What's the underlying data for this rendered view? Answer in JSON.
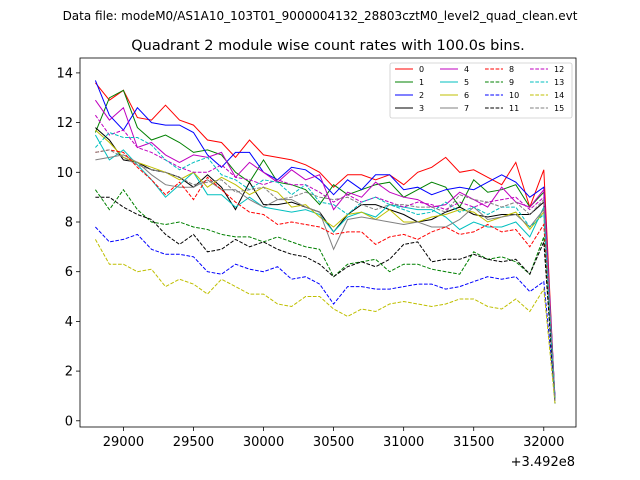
{
  "chart_data": {
    "type": "line",
    "suptitle": "Data file: modeM0/AS1A10_103T01_9000004132_28803cztM0_level2_quad_clean.evt",
    "title": "Quadrant 2 module wise count rates with 100.0s bins.",
    "xlabel": "",
    "ylabel": "",
    "x_offset_label": "+3.492e8",
    "xlim": [
      28690,
      32230
    ],
    "ylim": [
      -0.25,
      14.6
    ],
    "xticks": [
      29000,
      29500,
      30000,
      30500,
      31000,
      31500,
      32000
    ],
    "yticks": [
      0,
      2,
      4,
      6,
      8,
      10,
      12,
      14
    ],
    "xtick_labels": [
      "29000",
      "29500",
      "30000",
      "30500",
      "31000",
      "31500",
      "32000"
    ],
    "ytick_labels": [
      "0",
      "2",
      "4",
      "6",
      "8",
      "10",
      "12",
      "14"
    ],
    "legend_location": "upper-right",
    "x": [
      28800,
      28900,
      29000,
      29100,
      29200,
      29300,
      29400,
      29500,
      29600,
      29700,
      29800,
      29900,
      30000,
      30100,
      30200,
      30300,
      30400,
      30500,
      30600,
      30700,
      30800,
      30900,
      31000,
      31100,
      31200,
      31300,
      31400,
      31500,
      31600,
      31700,
      31800,
      31900,
      32000,
      32080
    ],
    "series": [
      {
        "name": "0",
        "color": "#ff0000",
        "dash": "solid",
        "values": [
          13.6,
          12.9,
          13.3,
          12.2,
          12.1,
          12.7,
          12.1,
          11.9,
          11.3,
          11.2,
          10.6,
          11.3,
          10.7,
          10.6,
          10.5,
          10.3,
          10.0,
          9.4,
          9.9,
          9.9,
          9.7,
          9.9,
          9.5,
          10.0,
          10.2,
          10.6,
          10.0,
          10.1,
          9.8,
          9.5,
          10.4,
          8.6,
          10.1,
          0.8
        ]
      },
      {
        "name": "1",
        "color": "#008000",
        "dash": "solid",
        "values": [
          11.6,
          13.0,
          13.3,
          11.8,
          11.3,
          11.5,
          11.2,
          10.8,
          10.9,
          10.7,
          10.0,
          9.6,
          10.5,
          9.6,
          9.5,
          9.3,
          8.7,
          9.5,
          9.1,
          9.3,
          9.5,
          9.6,
          9.0,
          9.3,
          9.6,
          9.4,
          8.6,
          9.7,
          9.2,
          9.3,
          9.5,
          8.6,
          9.2,
          0.8
        ]
      },
      {
        "name": "2",
        "color": "#0000ff",
        "dash": "solid",
        "values": [
          13.7,
          12.3,
          11.7,
          12.6,
          12.0,
          11.9,
          11.9,
          11.6,
          10.7,
          10.2,
          10.8,
          10.8,
          10.0,
          9.7,
          10.2,
          10.1,
          9.7,
          9.1,
          9.7,
          9.3,
          9.9,
          9.9,
          9.3,
          9.4,
          9.1,
          9.3,
          9.4,
          9.3,
          9.6,
          9.9,
          9.6,
          9.0,
          9.4,
          0.9
        ]
      },
      {
        "name": "3",
        "color": "#000000",
        "dash": "solid",
        "values": [
          11.8,
          11.3,
          10.5,
          10.4,
          10.1,
          10.0,
          9.8,
          9.4,
          9.9,
          9.4,
          8.5,
          9.6,
          8.7,
          8.7,
          8.8,
          8.6,
          8.4,
          7.6,
          8.3,
          8.7,
          8.7,
          8.5,
          8.3,
          8.0,
          8.1,
          8.4,
          8.6,
          8.3,
          8.2,
          8.3,
          8.3,
          8.3,
          8.8,
          0.8
        ]
      },
      {
        "name": "4",
        "color": "#bf00bf",
        "dash": "solid",
        "values": [
          12.9,
          12.1,
          12.6,
          11.0,
          11.2,
          10.7,
          10.4,
          10.7,
          10.6,
          10.8,
          9.8,
          10.4,
          10.0,
          9.6,
          10.1,
          9.7,
          9.9,
          8.5,
          9.2,
          9.0,
          9.6,
          9.2,
          9.0,
          8.9,
          8.6,
          8.7,
          9.2,
          8.9,
          8.6,
          9.4,
          8.8,
          8.6,
          9.3,
          0.9
        ]
      },
      {
        "name": "5",
        "color": "#00bfbf",
        "dash": "solid",
        "values": [
          11.5,
          10.5,
          10.9,
          10.3,
          9.7,
          9.0,
          9.5,
          10.0,
          9.1,
          9.1,
          8.6,
          9.0,
          8.6,
          8.5,
          8.4,
          8.5,
          8.3,
          7.6,
          8.2,
          8.4,
          8.2,
          8.7,
          8.6,
          8.5,
          8.5,
          8.2,
          7.7,
          8.0,
          7.8,
          7.8,
          8.0,
          7.4,
          8.6,
          0.9
        ]
      },
      {
        "name": "6",
        "color": "#bfbf00",
        "dash": "solid",
        "values": [
          11.7,
          11.2,
          10.6,
          10.4,
          10.2,
          10.0,
          9.7,
          10.0,
          9.4,
          9.8,
          9.5,
          9.1,
          9.4,
          9.2,
          8.6,
          8.7,
          8.2,
          7.8,
          8.3,
          8.4,
          8.1,
          8.5,
          8.0,
          8.0,
          8.2,
          8.3,
          8.5,
          8.4,
          8.0,
          8.2,
          8.4,
          7.7,
          8.4,
          0.9
        ]
      },
      {
        "name": "7",
        "color": "#808080",
        "dash": "solid",
        "values": [
          10.5,
          10.6,
          10.7,
          10.4,
          9.9,
          9.5,
          9.4,
          9.4,
          9.7,
          9.3,
          9.3,
          8.9,
          8.6,
          8.9,
          8.9,
          8.6,
          8.4,
          6.9,
          8.1,
          8.2,
          8.1,
          8.0,
          7.9,
          8.0,
          7.8,
          7.8,
          8.1,
          8.6,
          8.1,
          8.2,
          8.3,
          7.8,
          8.5,
          0.8
        ]
      },
      {
        "name": "8",
        "color": "#ff0000",
        "dash": "dashed",
        "values": [
          10.8,
          10.9,
          10.8,
          10.2,
          9.7,
          9.1,
          9.6,
          8.9,
          9.8,
          9.3,
          8.8,
          8.4,
          8.3,
          7.9,
          8.0,
          7.9,
          7.8,
          7.5,
          7.6,
          7.6,
          7.1,
          7.4,
          7.5,
          7.3,
          7.6,
          7.8,
          7.5,
          7.6,
          7.9,
          7.6,
          7.7,
          7.0,
          7.9,
          0.7
        ]
      },
      {
        "name": "9",
        "color": "#008000",
        "dash": "dashed",
        "values": [
          9.3,
          8.5,
          9.3,
          8.5,
          8.0,
          7.9,
          8.0,
          7.8,
          7.7,
          7.5,
          7.4,
          7.4,
          7.2,
          7.4,
          7.2,
          7.0,
          6.9,
          5.8,
          6.3,
          6.4,
          6.5,
          6.0,
          6.3,
          6.3,
          6.1,
          6.0,
          5.9,
          6.8,
          6.5,
          6.6,
          6.4,
          5.9,
          7.4,
          0.7
        ]
      },
      {
        "name": "10",
        "color": "#0000ff",
        "dash": "dashed",
        "values": [
          7.8,
          7.2,
          7.3,
          7.5,
          6.9,
          6.7,
          6.7,
          6.6,
          6.0,
          5.9,
          6.3,
          6.1,
          6.0,
          6.2,
          5.7,
          5.8,
          5.5,
          4.7,
          5.4,
          5.4,
          5.3,
          5.3,
          5.4,
          5.5,
          5.5,
          5.3,
          5.4,
          5.6,
          5.8,
          5.7,
          5.8,
          5.2,
          5.6,
          1.0
        ]
      },
      {
        "name": "11",
        "color": "#000000",
        "dash": "dashed",
        "values": [
          9.0,
          9.0,
          8.6,
          8.3,
          8.1,
          7.5,
          7.1,
          7.5,
          6.8,
          6.9,
          7.3,
          7.0,
          7.2,
          6.9,
          6.7,
          6.6,
          6.3,
          5.8,
          6.2,
          6.4,
          6.2,
          6.5,
          7.1,
          7.2,
          6.4,
          6.5,
          6.5,
          6.7,
          6.5,
          6.4,
          6.5,
          5.9,
          7.2,
          0.8
        ]
      },
      {
        "name": "12",
        "color": "#bf00bf",
        "dash": "dashed",
        "values": [
          12.3,
          11.5,
          11.7,
          11.0,
          10.8,
          10.5,
          10.2,
          10.0,
          10.0,
          10.3,
          9.8,
          9.7,
          9.5,
          9.7,
          9.5,
          9.5,
          9.2,
          8.8,
          9.1,
          8.8,
          9.0,
          8.8,
          8.6,
          8.8,
          8.7,
          8.5,
          8.8,
          8.6,
          8.8,
          8.9,
          9.0,
          8.5,
          9.0,
          0.8
        ]
      },
      {
        "name": "13",
        "color": "#00bfbf",
        "dash": "dashed",
        "values": [
          11.0,
          11.6,
          11.4,
          11.4,
          11.1,
          10.5,
          10.1,
          10.4,
          10.6,
          9.9,
          9.7,
          9.3,
          9.7,
          9.6,
          9.1,
          9.5,
          8.8,
          8.7,
          8.3,
          8.8,
          9.0,
          8.7,
          8.5,
          8.3,
          8.4,
          8.8,
          8.4,
          8.6,
          8.3,
          8.6,
          8.6,
          7.8,
          8.3,
          0.8
        ]
      },
      {
        "name": "14",
        "color": "#bfbf00",
        "dash": "dashed",
        "values": [
          7.3,
          6.3,
          6.3,
          6.0,
          6.1,
          5.4,
          5.7,
          5.5,
          5.1,
          5.7,
          5.4,
          5.1,
          5.1,
          4.7,
          4.6,
          5.0,
          5.0,
          4.5,
          4.2,
          4.5,
          4.4,
          4.7,
          4.8,
          4.7,
          4.6,
          4.7,
          4.9,
          4.9,
          4.6,
          4.5,
          4.9,
          4.4,
          5.3,
          0.7
        ]
      },
      {
        "name": "15",
        "color": "#808080",
        "dash": "dashed",
        "values": [
          10.8,
          10.9,
          10.6,
          10.3,
          10.1,
          10.0,
          9.8,
          9.5,
          9.6,
          9.7,
          9.2,
          9.3,
          9.4,
          8.9,
          9.0,
          9.2,
          9.0,
          8.9,
          9.0,
          8.7,
          8.5,
          8.7,
          8.7,
          8.6,
          8.6,
          8.4,
          9.1,
          8.9,
          8.8,
          8.6,
          8.8,
          8.3,
          8.9,
          0.8
        ]
      }
    ]
  }
}
